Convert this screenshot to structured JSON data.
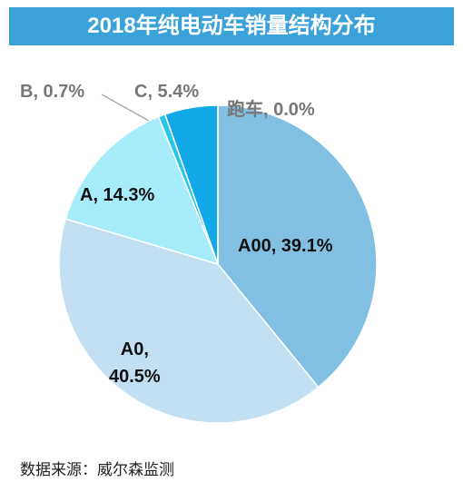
{
  "chart_data": {
    "type": "pie",
    "title": "2018年纯电动车销量结构分布",
    "values": [
      39.1,
      40.5,
      14.3,
      0.7,
      5.4,
      0.0
    ],
    "value_labels": [
      "A00, 39.1%",
      "A0,\n40.5%",
      "A, 14.3%",
      "B, 0.7%",
      "C, 5.4%",
      "跑车, 0.0%"
    ],
    "colors": [
      "#82c0e3",
      "#c2e0f1",
      "#a6ecfa",
      "#25c6ea",
      "#12a8e8",
      "#12a8e8"
    ],
    "source": "数据来源：威尔森监测"
  }
}
